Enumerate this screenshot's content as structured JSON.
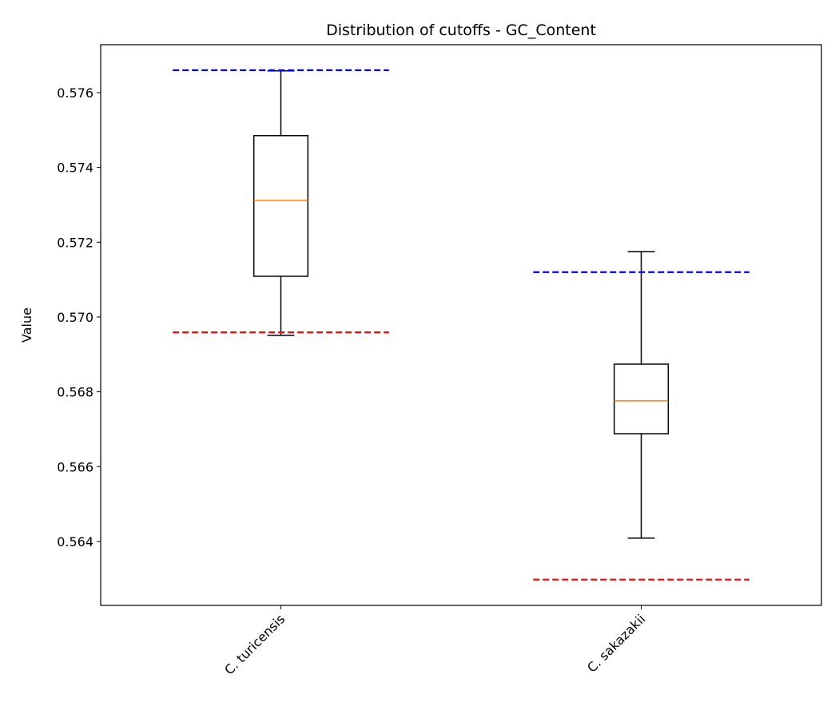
{
  "chart_data": {
    "type": "box",
    "title": "Distribution of cutoffs - GC_Content",
    "xlabel": "",
    "ylabel": "Value",
    "ylim": [
      0.56229,
      0.57728
    ],
    "yticks": [
      "0.564",
      "0.566",
      "0.568",
      "0.570",
      "0.572",
      "0.574",
      "0.576"
    ],
    "ytick_values": [
      0.564,
      0.566,
      0.568,
      0.57,
      0.572,
      0.574,
      0.576
    ],
    "categories": [
      "C. turicensis",
      "C. sakazakii"
    ],
    "grid": false,
    "boxes": [
      {
        "whisker_low": 0.56951,
        "q1": 0.57109,
        "median": 0.57312,
        "q3": 0.57485,
        "whisker_high": 0.57658,
        "upper_cutoff": 0.5766,
        "lower_cutoff": 0.56959
      },
      {
        "whisker_low": 0.56409,
        "q1": 0.56688,
        "median": 0.56776,
        "q3": 0.56874,
        "whisker_high": 0.57175,
        "upper_cutoff": 0.5712,
        "lower_cutoff": 0.56298
      }
    ],
    "colors": {
      "box": "#000000",
      "median": "#ff7f0e",
      "upper_cutoff": "#0000ff",
      "lower_cutoff": "#ff0000"
    }
  }
}
